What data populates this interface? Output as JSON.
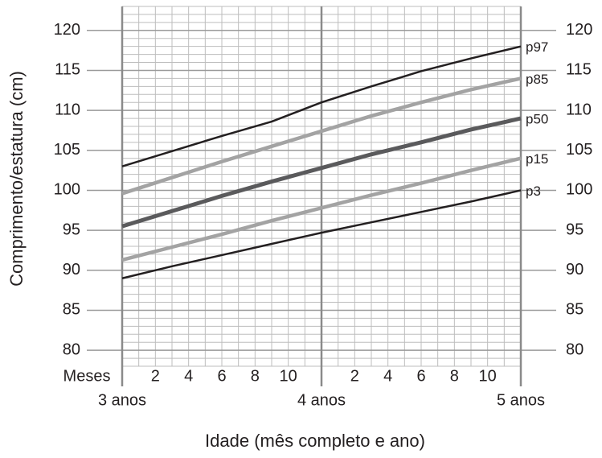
{
  "chart_data": {
    "type": "line",
    "ylabel": "Comprimento/estatura (cm)",
    "xlabel": "Idade (mês completo e ano)",
    "month_row_label": "Meses",
    "xlim": [
      36,
      60
    ],
    "ylim": [
      78,
      123
    ],
    "yticks": [
      80,
      85,
      90,
      95,
      100,
      105,
      110,
      115,
      120
    ],
    "y_minor_ticks": [
      78,
      79,
      80,
      81,
      82,
      83,
      84,
      85,
      86,
      87,
      88,
      89,
      90,
      91,
      92,
      93,
      94,
      95,
      96,
      97,
      98,
      99,
      100,
      101,
      102,
      103,
      104,
      105,
      106,
      107,
      108,
      109,
      110,
      111,
      112,
      113,
      114,
      115,
      116,
      117,
      118,
      119,
      120,
      121,
      122,
      123
    ],
    "x_minor_ticks": [
      36,
      37,
      38,
      39,
      40,
      41,
      42,
      43,
      44,
      45,
      46,
      47,
      48,
      49,
      50,
      51,
      52,
      53,
      54,
      55,
      56,
      57,
      58,
      59,
      60
    ],
    "xticks": [
      {
        "value": 38,
        "label": "2"
      },
      {
        "value": 40,
        "label": "4"
      },
      {
        "value": 42,
        "label": "6"
      },
      {
        "value": 44,
        "label": "8"
      },
      {
        "value": 46,
        "label": "10"
      },
      {
        "value": 50,
        "label": "2"
      },
      {
        "value": 52,
        "label": "4"
      },
      {
        "value": 54,
        "label": "6"
      },
      {
        "value": 56,
        "label": "8"
      },
      {
        "value": 58,
        "label": "10"
      }
    ],
    "year_ticks": [
      {
        "value": 36,
        "label": "3 anos"
      },
      {
        "value": 48,
        "label": "4 anos"
      },
      {
        "value": 60,
        "label": "5 anos"
      }
    ],
    "x": [
      36,
      39,
      42,
      45,
      48,
      51,
      54,
      57,
      60
    ],
    "series": [
      {
        "name": "p97",
        "color": "#231f20",
        "width": 2.5,
        "values": [
          103,
          104.9,
          106.8,
          108.6,
          111,
          113,
          114.9,
          116.5,
          118
        ]
      },
      {
        "name": "p85",
        "color": "#a3a3a3",
        "width": 4.5,
        "values": [
          99.6,
          101.6,
          103.6,
          105.5,
          107.4,
          109.3,
          111,
          112.6,
          114
        ]
      },
      {
        "name": "p50",
        "color": "#5a5a5c",
        "width": 5,
        "values": [
          95.5,
          97.4,
          99.3,
          101.1,
          102.8,
          104.5,
          106,
          107.6,
          109
        ]
      },
      {
        "name": "p15",
        "color": "#a3a3a3",
        "width": 4.5,
        "values": [
          91.3,
          92.9,
          94.5,
          96.2,
          97.8,
          99.4,
          100.9,
          102.5,
          104
        ]
      },
      {
        "name": "p3",
        "color": "#231f20",
        "width": 2.5,
        "values": [
          89,
          90.5,
          91.9,
          93.3,
          94.7,
          96,
          97.3,
          98.6,
          100
        ]
      }
    ]
  }
}
